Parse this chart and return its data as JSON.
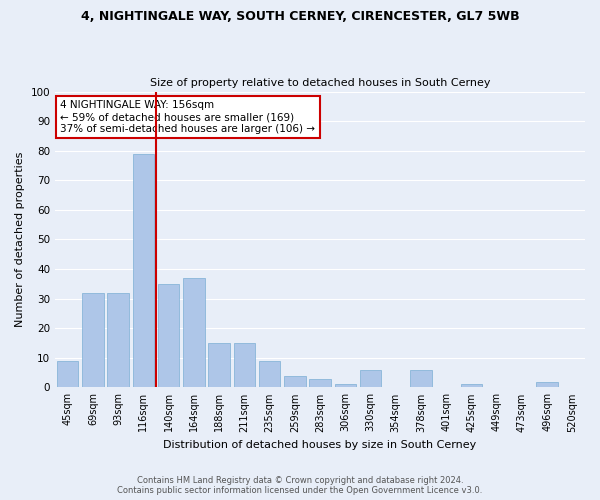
{
  "title1": "4, NIGHTINGALE WAY, SOUTH CERNEY, CIRENCESTER, GL7 5WB",
  "title2": "Size of property relative to detached houses in South Cerney",
  "xlabel": "Distribution of detached houses by size in South Cerney",
  "ylabel": "Number of detached properties",
  "categories": [
    "45sqm",
    "69sqm",
    "93sqm",
    "116sqm",
    "140sqm",
    "164sqm",
    "188sqm",
    "211sqm",
    "235sqm",
    "259sqm",
    "283sqm",
    "306sqm",
    "330sqm",
    "354sqm",
    "378sqm",
    "401sqm",
    "425sqm",
    "449sqm",
    "473sqm",
    "496sqm",
    "520sqm"
  ],
  "values": [
    9,
    32,
    32,
    79,
    35,
    37,
    15,
    15,
    9,
    4,
    3,
    1,
    6,
    0,
    6,
    0,
    1,
    0,
    0,
    2,
    0
  ],
  "bar_color": "#aec6e8",
  "bar_edge_color": "#7bafd4",
  "background_color": "#e8eef8",
  "grid_color": "#ffffff",
  "vline_color": "#cc0000",
  "vline_pos": 3.5,
  "annotation_text": "4 NIGHTINGALE WAY: 156sqm\n← 59% of detached houses are smaller (169)\n37% of semi-detached houses are larger (106) →",
  "annotation_box_color": "#cc0000",
  "footer1": "Contains HM Land Registry data © Crown copyright and database right 2024.",
  "footer2": "Contains public sector information licensed under the Open Government Licence v3.0.",
  "ylim": [
    0,
    100
  ],
  "yticks": [
    0,
    10,
    20,
    30,
    40,
    50,
    60,
    70,
    80,
    90,
    100
  ]
}
